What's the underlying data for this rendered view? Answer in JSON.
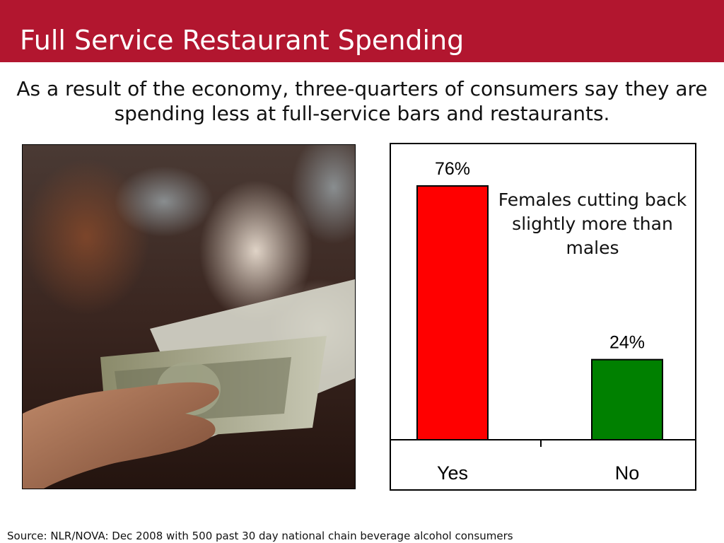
{
  "slide": {
    "title": "Full Service Restaurant Spending",
    "subtitle": "As a result of the economy, three-quarters of consumers say they are spending less at full-service bars and restaurants.",
    "source": "Source: NLR/NOVA:  Dec 2008 with 500 past 30 day national chain beverage alcohol consumers"
  },
  "colors": {
    "title_bar": "#b2162f",
    "yes_bar": "#ff0000",
    "no_bar": "#008000"
  },
  "chart_data": {
    "type": "bar",
    "categories": [
      "Yes",
      "No"
    ],
    "values": [
      76,
      24
    ],
    "data_labels": [
      "76%",
      "24%"
    ],
    "colors": [
      "#ff0000",
      "#008000"
    ],
    "annotation": "Females cutting back slightly more than males",
    "ylim": [
      0,
      100
    ],
    "grid": false
  }
}
